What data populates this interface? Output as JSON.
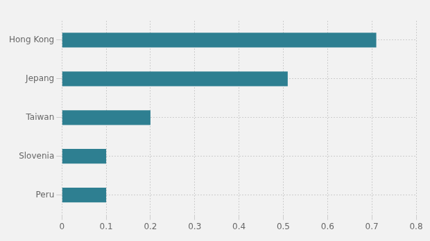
{
  "chart_data": {
    "type": "bar",
    "orientation": "horizontal",
    "categories": [
      "Peru",
      "Slovenia",
      "Taiwan",
      "Jepang",
      "Hong Kong"
    ],
    "values": [
      0.1,
      0.1,
      0.2,
      0.51,
      0.71
    ],
    "color": "#2e7f91",
    "xlim": [
      0,
      0.8
    ],
    "xticks": [
      0,
      0.1,
      0.2,
      0.3,
      0.4,
      0.5,
      0.6,
      0.7,
      0.8
    ],
    "grid": true
  }
}
